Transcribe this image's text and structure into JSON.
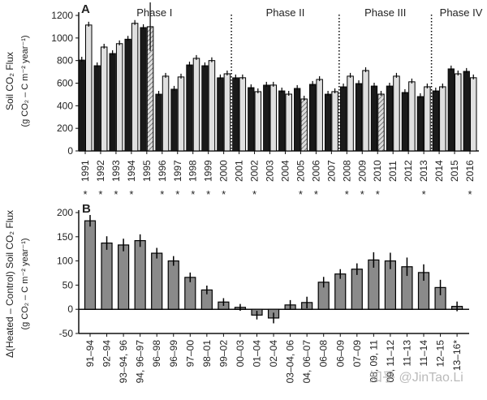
{
  "colors": {
    "control": "#1a1a1a",
    "heated": "#e0e0e0",
    "diff": "#8a8a8a",
    "axis": "#111111"
  },
  "watermark": "知乎 @JinTao.Li",
  "chart_data": [
    {
      "type": "bar",
      "panel_label": "A",
      "ylabel_line1": "Soil CO₂ Flux",
      "ylabel_line2": "(g CO₂ – C m⁻² year⁻¹)",
      "ylim": [
        0,
        1200
      ],
      "yticks": [
        0,
        200,
        400,
        600,
        800,
        1000,
        1200
      ],
      "categories": [
        "1991",
        "1992",
        "1993",
        "1994",
        "1995",
        "1996",
        "1997",
        "1998",
        "1999",
        "2000",
        "2001",
        "2002",
        "2003",
        "2004",
        "2005",
        "2006",
        "2007",
        "2008",
        "2009",
        "2010",
        "2011",
        "2012",
        "2013",
        "2014",
        "2015",
        "2016"
      ],
      "series": [
        {
          "key": "control",
          "values": [
            805,
            755,
            863,
            990,
            1093,
            503,
            547,
            762,
            755,
            648,
            648,
            561,
            583,
            532,
            554,
            590,
            503,
            568,
            597,
            575,
            575,
            518,
            482,
            532,
            727,
            705
          ]
        },
        {
          "key": "heated",
          "values": [
            1115,
            920,
            950,
            1130,
            1100,
            662,
            655,
            820,
            800,
            683,
            648,
            525,
            583,
            503,
            460,
            633,
            525,
            662,
            712,
            503,
            662,
            612,
            568,
            568,
            683,
            648
          ]
        }
      ],
      "hatched_heated": [
        "1995",
        "2005",
        "2010"
      ],
      "significant": [
        "1991",
        "1992",
        "1993",
        "1994",
        "1996",
        "1997",
        "1998",
        "1999",
        "2000",
        "2002",
        "2005",
        "2006",
        "2008",
        "2009",
        "2010",
        "2013",
        "2016"
      ],
      "significance_marker": "*",
      "phases": [
        {
          "label": "Phase I",
          "start": "1991",
          "end": "2000"
        },
        {
          "label": "Phase II",
          "start": "2001",
          "end": "2007"
        },
        {
          "label": "Phase III",
          "start": "2008",
          "end": "2013"
        },
        {
          "label": "Phase IV",
          "start": "2014",
          "end": "2016"
        }
      ]
    },
    {
      "type": "bar",
      "panel_label": "B",
      "ylabel_line1": "Δ(Heated – Control) Soil CO₂ Flux",
      "ylabel_line2": "(g CO₂ – C m⁻² year⁻¹)",
      "ylim": [
        -50,
        200
      ],
      "yticks": [
        -50,
        0,
        50,
        100,
        150,
        200
      ],
      "categories": [
        "91–94",
        "92–94",
        "93–94, 96",
        "94, 96–97",
        "96–98",
        "96–99",
        "97–00",
        "98–01",
        "99–02",
        "00–03",
        "01–04",
        "02–04",
        "03–04, 06",
        "04, 06–07",
        "06–08",
        "06–09",
        "07–09",
        "08, 09, 11",
        "09, 11–12",
        "11–13",
        "11–14",
        "12–15",
        "13–16*"
      ],
      "values": [
        183,
        137,
        133,
        142,
        116,
        100,
        66,
        40,
        15,
        4,
        -12,
        -18,
        9,
        14,
        56,
        73,
        83,
        102,
        100,
        88,
        76,
        45,
        6
      ],
      "errors": [
        12,
        14,
        13,
        13,
        11,
        10,
        10,
        9,
        8,
        7,
        9,
        11,
        10,
        12,
        11,
        10,
        12,
        16,
        17,
        19,
        17,
        16,
        10
      ]
    }
  ]
}
